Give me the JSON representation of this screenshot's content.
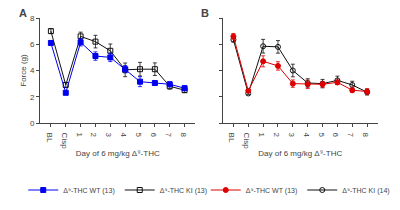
{
  "chart_data": [
    {
      "type": "line",
      "title": "A",
      "xlabel": "Day of 6 mg/kg Δ⁹-THC",
      "ylabel": "Force (g)",
      "categories": [
        "BL",
        "Cisp",
        "1",
        "2",
        "3",
        "4",
        "5",
        "6",
        "7",
        "8"
      ],
      "series": [
        {
          "name": "Δ⁹-THC KI (13)",
          "color": "#111111",
          "marker": "square-open",
          "values": [
            7.0,
            2.9,
            6.6,
            6.2,
            5.5,
            4.05,
            4.1,
            4.1,
            2.8,
            2.5
          ],
          "errors": [
            0.18,
            0.18,
            0.32,
            0.48,
            0.52,
            0.52,
            0.52,
            0.48,
            0.22,
            0.18
          ]
        },
        {
          "name": "Δ⁹-THC WT (13)",
          "color": "#0000ee",
          "marker": "square",
          "values": [
            6.1,
            2.3,
            6.15,
            5.1,
            5.0,
            4.1,
            3.15,
            3.05,
            2.95,
            2.65
          ],
          "errors": [
            0.18,
            0.13,
            0.28,
            0.32,
            0.32,
            0.28,
            0.38,
            0.18,
            0.18,
            0.18
          ]
        }
      ],
      "ylim": [
        0,
        8
      ],
      "yticks": [
        0,
        2,
        4,
        6,
        8
      ],
      "grid": false,
      "legend": "bottom"
    },
    {
      "type": "line",
      "title": "B",
      "xlabel": "Day of 6 mg/kg Δ⁹-THC",
      "categories": [
        "BL",
        "Cisp",
        "1",
        "2",
        "3",
        "4",
        "5",
        "6",
        "7",
        "8"
      ],
      "series": [
        {
          "name": "Δ⁹-THC KI (14)",
          "color": "#111111",
          "marker": "circle-open",
          "values": [
            6.35,
            2.25,
            5.85,
            5.8,
            4.0,
            3.05,
            3.0,
            3.25,
            2.9,
            2.35
          ],
          "errors": [
            0.18,
            0.09,
            0.52,
            0.48,
            0.48,
            0.32,
            0.32,
            0.32,
            0.28,
            0.22
          ]
        },
        {
          "name": "Δ⁹-THC WT (13)",
          "color": "#dd0000",
          "marker": "circle",
          "values": [
            6.6,
            2.45,
            4.7,
            4.35,
            3.0,
            2.95,
            2.95,
            3.1,
            2.5,
            2.4
          ],
          "errors": [
            0.22,
            0.09,
            0.42,
            0.32,
            0.28,
            0.32,
            0.22,
            0.18,
            0.18,
            0.22
          ]
        }
      ],
      "ylim": [
        0,
        8
      ],
      "yticks": [
        0,
        2,
        4,
        6,
        8
      ],
      "grid": false,
      "legend": "bottom",
      "tick_labels": "x"
    }
  ]
}
